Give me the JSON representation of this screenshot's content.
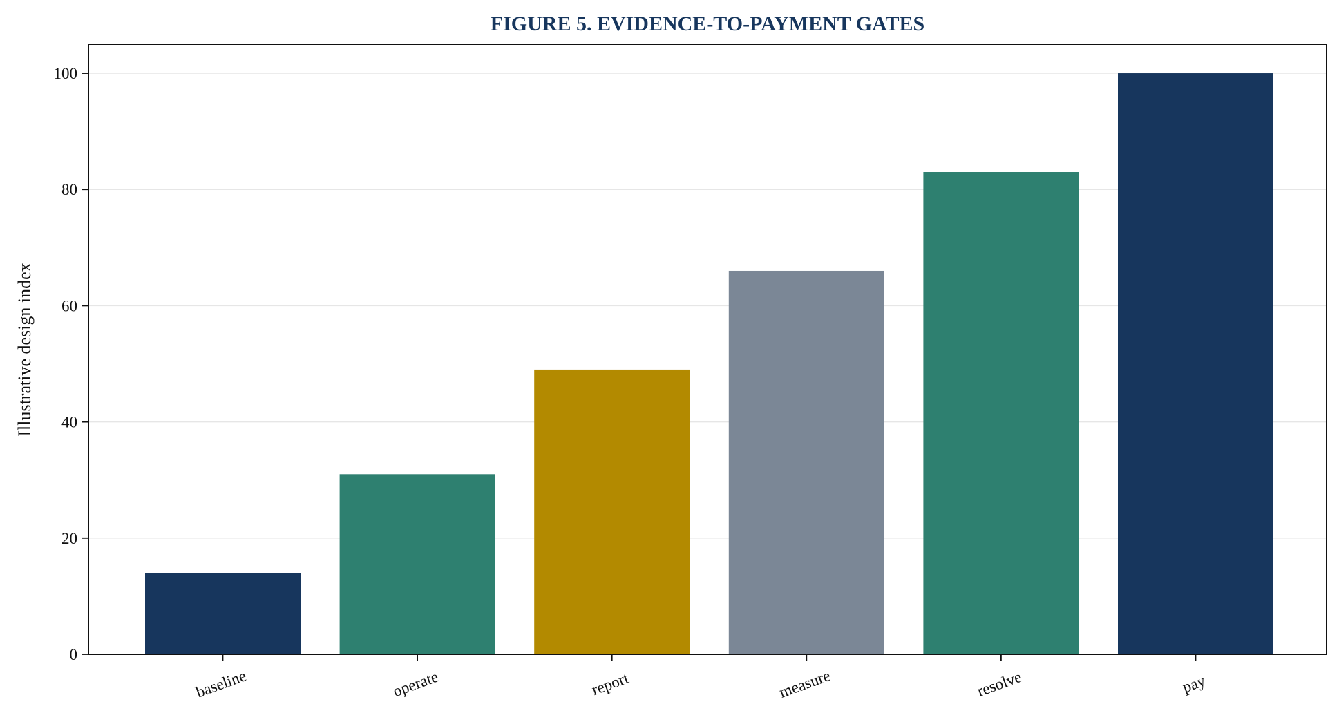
{
  "chart_data": {
    "type": "bar",
    "title": "FIGURE 5. EVIDENCE-TO-PAYMENT GATES",
    "xlabel": "",
    "ylabel": "Illustrative design index",
    "categories": [
      "baseline",
      "operate",
      "report",
      "measure",
      "resolve",
      "pay"
    ],
    "values": [
      14,
      31,
      49,
      66,
      83,
      100
    ],
    "colors": [
      "#17365d",
      "#2e8070",
      "#b38a00",
      "#7b8796",
      "#2e8070",
      "#17365d"
    ],
    "ylim": [
      0,
      105
    ],
    "yticks": [
      0,
      20,
      40,
      60,
      80,
      100
    ],
    "grid": "y",
    "legend": "none"
  }
}
